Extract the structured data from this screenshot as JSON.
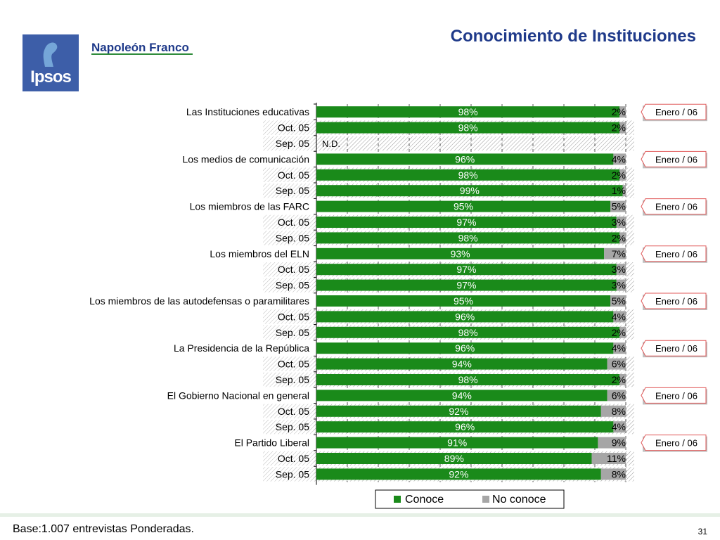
{
  "header": {
    "title": "Conocimiento de Instituciones",
    "logo_text": "Ipsos",
    "brand": "Napoleón Franco"
  },
  "footer": {
    "note": "Base:1.007 entrevistas Ponderadas.",
    "page_number": "31"
  },
  "colors": {
    "conoce": "#1a8a1a",
    "no_conoce": "#a6a6a6",
    "title": "#1f3a8a",
    "callout_border": "#e05a5a"
  },
  "chart_data": {
    "type": "bar",
    "orientation": "horizontal",
    "stacked": true,
    "xlim": [
      0,
      100
    ],
    "grid": true,
    "legend_position": "bottom",
    "series_names": [
      "Conoce",
      "No conoce"
    ],
    "callout_label": "Enero / 06",
    "rows": [
      {
        "label": "Las Instituciones educativas",
        "conoce": 98,
        "no_conoce": 2,
        "conoce_label": "98%",
        "no_conoce_label": "2%",
        "callout": true
      },
      {
        "label": "Oct. 05",
        "conoce": 98,
        "no_conoce": 2,
        "conoce_label": "98%",
        "no_conoce_label": "2%",
        "previous": true
      },
      {
        "label": "Sep. 05",
        "conoce": null,
        "no_conoce": null,
        "na_label": "N.D.",
        "previous": true
      },
      {
        "label": "Los medios de comunicación",
        "conoce": 96,
        "no_conoce": 4,
        "conoce_label": "96%",
        "no_conoce_label": "4%",
        "callout": true
      },
      {
        "label": "Oct. 05",
        "conoce": 98,
        "no_conoce": 2,
        "conoce_label": "98%",
        "no_conoce_label": "2%",
        "previous": true
      },
      {
        "label": "Sep. 05",
        "conoce": 99,
        "no_conoce": 1,
        "conoce_label": "99%",
        "no_conoce_label": "1%",
        "previous": true
      },
      {
        "label": "Los miembros de las FARC",
        "conoce": 95,
        "no_conoce": 5,
        "conoce_label": "95%",
        "no_conoce_label": "5%",
        "callout": true
      },
      {
        "label": "Oct. 05",
        "conoce": 97,
        "no_conoce": 3,
        "conoce_label": "97%",
        "no_conoce_label": "3%",
        "previous": true
      },
      {
        "label": "Sep. 05",
        "conoce": 98,
        "no_conoce": 2,
        "conoce_label": "98%",
        "no_conoce_label": "2%",
        "previous": true
      },
      {
        "label": "Los miembros del ELN",
        "conoce": 93,
        "no_conoce": 7,
        "conoce_label": "93%",
        "no_conoce_label": "7%",
        "callout": true
      },
      {
        "label": "Oct. 05",
        "conoce": 97,
        "no_conoce": 3,
        "conoce_label": "97%",
        "no_conoce_label": "3%",
        "previous": true
      },
      {
        "label": "Sep. 05",
        "conoce": 97,
        "no_conoce": 3,
        "conoce_label": "97%",
        "no_conoce_label": "3%",
        "previous": true
      },
      {
        "label": "Los miembros de las autodefensas o paramilitares",
        "conoce": 95,
        "no_conoce": 5,
        "conoce_label": "95%",
        "no_conoce_label": "5%",
        "callout": true
      },
      {
        "label": "Oct. 05",
        "conoce": 96,
        "no_conoce": 4,
        "conoce_label": "96%",
        "no_conoce_label": "4%",
        "previous": true
      },
      {
        "label": "Sep. 05",
        "conoce": 98,
        "no_conoce": 2,
        "conoce_label": "98%",
        "no_conoce_label": "2%",
        "previous": true
      },
      {
        "label": "La Presidencia de la República",
        "conoce": 96,
        "no_conoce": 4,
        "conoce_label": "96%",
        "no_conoce_label": "4%",
        "callout": true
      },
      {
        "label": "Oct. 05",
        "conoce": 94,
        "no_conoce": 6,
        "conoce_label": "94%",
        "no_conoce_label": "6%",
        "previous": true
      },
      {
        "label": "Sep. 05",
        "conoce": 98,
        "no_conoce": 2,
        "conoce_label": "98%",
        "no_conoce_label": "2%",
        "previous": true
      },
      {
        "label": "El Gobierno Nacional en general",
        "conoce": 94,
        "no_conoce": 6,
        "conoce_label": "94%",
        "no_conoce_label": "6%",
        "callout": true
      },
      {
        "label": "Oct. 05",
        "conoce": 92,
        "no_conoce": 8,
        "conoce_label": "92%",
        "no_conoce_label": "8%",
        "previous": true
      },
      {
        "label": "Sep. 05",
        "conoce": 96,
        "no_conoce": 4,
        "conoce_label": "96%",
        "no_conoce_label": "4%",
        "previous": true
      },
      {
        "label": "El Partido Liberal",
        "conoce": 91,
        "no_conoce": 9,
        "conoce_label": "91%",
        "no_conoce_label": "9%",
        "callout": true
      },
      {
        "label": "Oct. 05",
        "conoce": 89,
        "no_conoce": 11,
        "conoce_label": "89%",
        "no_conoce_label": "11%",
        "previous": true
      },
      {
        "label": "Sep. 05",
        "conoce": 92,
        "no_conoce": 8,
        "conoce_label": "92%",
        "no_conoce_label": "8%",
        "previous": true
      }
    ]
  }
}
